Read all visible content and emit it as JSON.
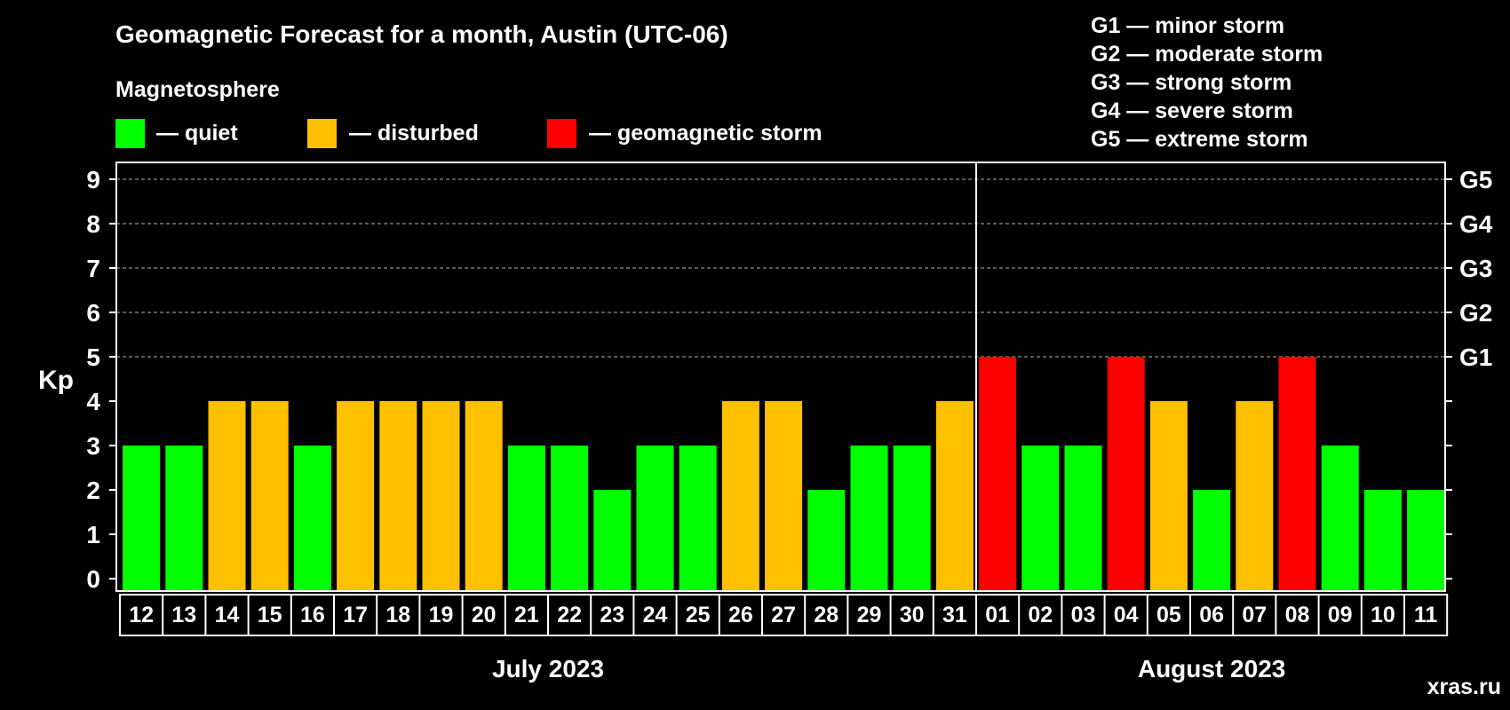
{
  "colors": {
    "quiet": "#00ff00",
    "disturbed": "#ffc000",
    "storm": "#ff0000",
    "background": "#000000",
    "foreground": "#ffffff",
    "grid": "#8c8c8c",
    "watermark": "#8c8c8c"
  },
  "legend": {
    "section_title": "Magnetosphere",
    "items": [
      {
        "key": "quiet",
        "label": "— quiet"
      },
      {
        "key": "disturbed",
        "label": "— disturbed"
      },
      {
        "key": "storm",
        "label": "— geomagnetic storm"
      }
    ]
  },
  "storm_scale": [
    "G1 — minor storm",
    "G2 — moderate storm",
    "G3 — strong storm",
    "G4 — severe storm",
    "G5 — extreme storm"
  ],
  "watermark": "xras.ru",
  "chart_data": {
    "type": "bar",
    "title": "Geomagnetic Forecast for a month, Austin (UTC-06)",
    "ylabel": "Kp",
    "xlabel": "",
    "ylim": [
      0,
      9
    ],
    "yticks": [
      0,
      1,
      2,
      3,
      4,
      5,
      6,
      7,
      8,
      9
    ],
    "grid": true,
    "right_axis_labels": [
      {
        "kp": 5,
        "label": "G1"
      },
      {
        "kp": 6,
        "label": "G2"
      },
      {
        "kp": 7,
        "label": "G3"
      },
      {
        "kp": 8,
        "label": "G4"
      },
      {
        "kp": 9,
        "label": "G5"
      }
    ],
    "categories": [
      "12",
      "13",
      "14",
      "15",
      "16",
      "17",
      "18",
      "19",
      "20",
      "21",
      "22",
      "23",
      "24",
      "25",
      "26",
      "27",
      "28",
      "29",
      "30",
      "31",
      "01",
      "02",
      "03",
      "04",
      "05",
      "06",
      "07",
      "08",
      "09",
      "10",
      "11"
    ],
    "values": [
      3,
      3,
      4,
      4,
      3,
      4,
      4,
      4,
      4,
      3,
      3,
      2,
      3,
      3,
      4,
      4,
      2,
      3,
      3,
      4,
      5,
      3,
      3,
      5,
      4,
      2,
      4,
      5,
      3,
      2,
      2
    ],
    "levels": [
      "quiet",
      "quiet",
      "disturbed",
      "disturbed",
      "quiet",
      "disturbed",
      "disturbed",
      "disturbed",
      "disturbed",
      "quiet",
      "quiet",
      "quiet",
      "quiet",
      "quiet",
      "disturbed",
      "disturbed",
      "quiet",
      "quiet",
      "quiet",
      "disturbed",
      "storm",
      "quiet",
      "quiet",
      "storm",
      "disturbed",
      "quiet",
      "disturbed",
      "storm",
      "quiet",
      "quiet",
      "quiet"
    ],
    "months": [
      {
        "label": "July 2023",
        "count": 20
      },
      {
        "label": "August 2023",
        "count": 11
      }
    ]
  }
}
